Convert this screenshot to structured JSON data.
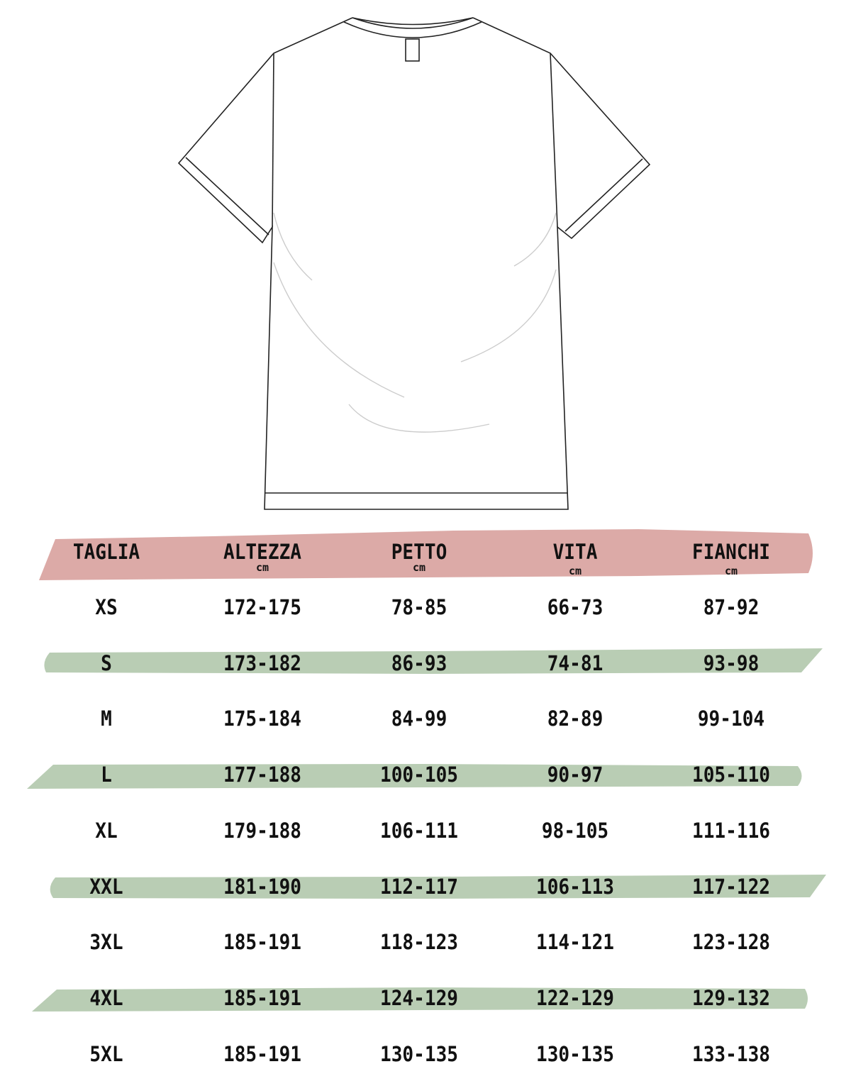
{
  "colors": {
    "header_stroke": "#dcaaa7",
    "row_stroke": "#b9cdb4",
    "text": "#111111",
    "shirt_outline": "#222222"
  },
  "illustration": "t-shirt-flat-sketch",
  "table": {
    "headers": [
      {
        "label": "TAGLIA",
        "unit": ""
      },
      {
        "label": "ALTEZZA",
        "unit": "cm"
      },
      {
        "label": "PETTO",
        "unit": "cm"
      },
      {
        "label": "VITA",
        "unit": "cm"
      },
      {
        "label": "FIANCHI",
        "unit": "cm"
      }
    ],
    "rows": [
      {
        "size": "XS",
        "altezza": "172-175",
        "petto": "78-85",
        "vita": "66-73",
        "fianchi": "87-92",
        "highlighted": false
      },
      {
        "size": "S",
        "altezza": "173-182",
        "petto": "86-93",
        "vita": "74-81",
        "fianchi": "93-98",
        "highlighted": true
      },
      {
        "size": "M",
        "altezza": "175-184",
        "petto": "84-99",
        "vita": "82-89",
        "fianchi": "99-104",
        "highlighted": false
      },
      {
        "size": "L",
        "altezza": "177-188",
        "petto": "100-105",
        "vita": "90-97",
        "fianchi": "105-110",
        "highlighted": true
      },
      {
        "size": "XL",
        "altezza": "179-188",
        "petto": "106-111",
        "vita": "98-105",
        "fianchi": "111-116",
        "highlighted": false
      },
      {
        "size": "XXL",
        "altezza": "181-190",
        "petto": "112-117",
        "vita": "106-113",
        "fianchi": "117-122",
        "highlighted": true
      },
      {
        "size": "3XL",
        "altezza": "185-191",
        "petto": "118-123",
        "vita": "114-121",
        "fianchi": "123-128",
        "highlighted": false
      },
      {
        "size": "4XL",
        "altezza": "185-191",
        "petto": "124-129",
        "vita": "122-129",
        "fianchi": "129-132",
        "highlighted": true
      },
      {
        "size": "5XL",
        "altezza": "185-191",
        "petto": "130-135",
        "vita": "130-135",
        "fianchi": "133-138",
        "highlighted": false
      }
    ]
  }
}
